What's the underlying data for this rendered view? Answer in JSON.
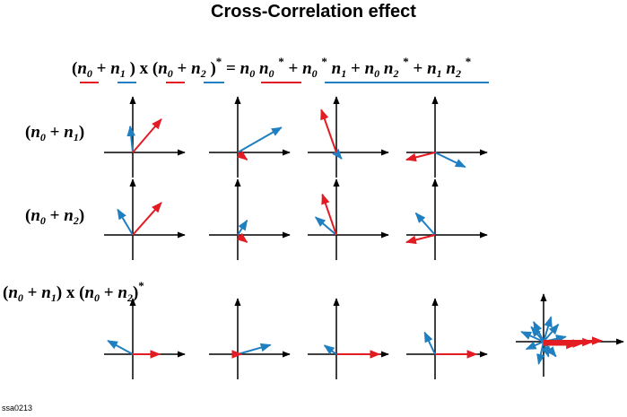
{
  "title": "Cross-Correlation effect",
  "footer": "ssa0213",
  "colors": {
    "red": "#e31b23",
    "blue": "#1f7fc1",
    "axis": "#000000"
  },
  "equation": {
    "lhs": "(n0 + n1) x (n0 + n2)*",
    "rhs": "= n0 n0* + n0* n1 + n0 n2* + n1 n2*"
  },
  "row_labels": [
    "(n0 + n1)",
    "(n0 + n2)",
    "(n0 + n1) x (n0 + n2)*"
  ],
  "vector_rows": [
    [
      {
        "red": [
          0.55,
          0.64
        ],
        "blue": [
          -0.05,
          0.5
        ]
      },
      {
        "red": [
          0.18,
          -0.14
        ],
        "blue": [
          0.84,
          0.48
        ]
      },
      {
        "red": [
          -0.29,
          0.82
        ],
        "blue": [
          0.1,
          -0.12
        ]
      },
      {
        "red": [
          -0.55,
          -0.14
        ],
        "blue": [
          0.58,
          -0.28
        ]
      }
    ],
    [
      {
        "red": [
          0.55,
          0.62
        ],
        "blue": [
          -0.29,
          0.49
        ]
      },
      {
        "red": [
          0.18,
          -0.14
        ],
        "blue": [
          0.18,
          0.28
        ]
      },
      {
        "red": [
          -0.27,
          0.78
        ],
        "blue": [
          -0.4,
          0.34
        ]
      },
      {
        "red": [
          -0.55,
          -0.14
        ],
        "blue": [
          -0.37,
          0.42
        ]
      }
    ],
    [
      {
        "red": [
          0.52,
          0
        ],
        "blue": [
          -0.48,
          0.26
        ]
      },
      {
        "red": [
          0.07,
          0
        ],
        "blue": [
          0.63,
          0.18
        ]
      },
      {
        "red": [
          0.83,
          0
        ],
        "blue": [
          -0.23,
          0.17
        ]
      },
      {
        "red": [
          0.8,
          0
        ],
        "blue": [
          -0.2,
          0.42
        ]
      }
    ]
  ],
  "summary": {
    "red": [
      [
        0.9,
        0
      ],
      [
        0.75,
        0
      ],
      [
        0.6,
        0
      ],
      [
        0.5,
        0
      ]
    ],
    "blue": [
      [
        -0.45,
        0.2
      ],
      [
        0.3,
        0.35
      ],
      [
        -0.2,
        0.4
      ],
      [
        0.25,
        -0.3
      ],
      [
        -0.35,
        -0.15
      ],
      [
        0.45,
        0.1
      ],
      [
        -0.1,
        -0.45
      ],
      [
        0.15,
        0.5
      ],
      [
        -0.25,
        0.3
      ],
      [
        0.1,
        -0.3
      ]
    ]
  }
}
